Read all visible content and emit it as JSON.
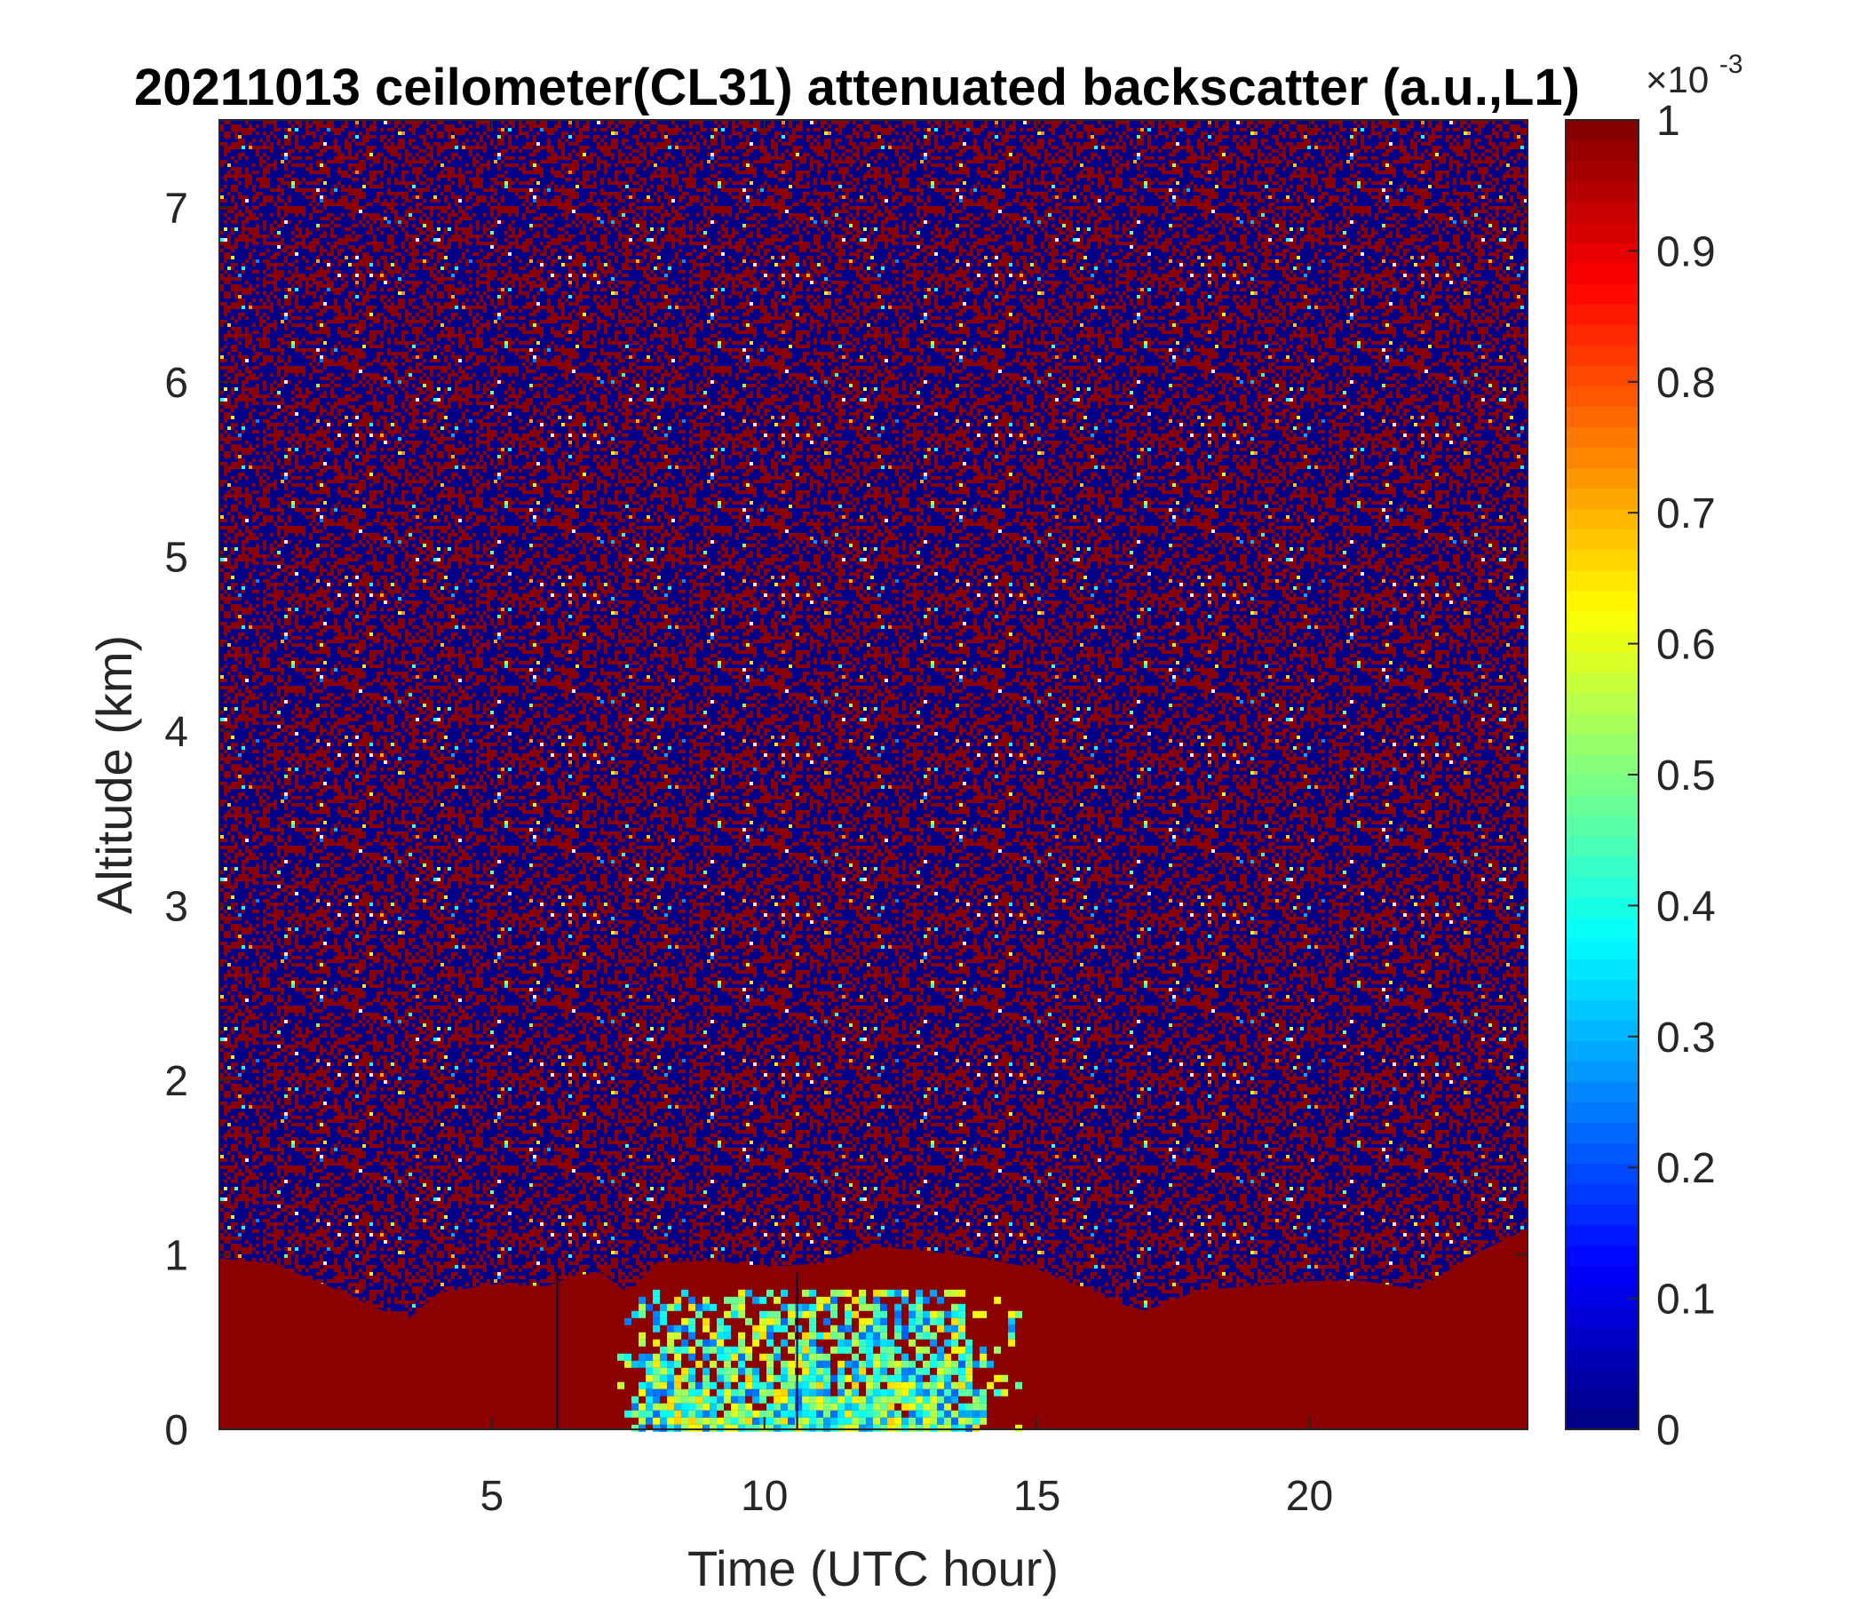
{
  "chart_data": {
    "type": "heatmap",
    "title": "20211013 ceilometer(CL31) attenuated backscatter (a.u.,L1)",
    "xlabel": "Time (UTC hour)",
    "ylabel": "Altitude (km)",
    "xlim": [
      0,
      24
    ],
    "ylim": [
      0,
      7.5
    ],
    "xticks": [
      5,
      10,
      15,
      20
    ],
    "yticks": [
      0,
      1,
      2,
      3,
      4,
      5,
      6,
      7
    ],
    "colorbar": {
      "colormap": "jet",
      "clim": [
        0,
        1
      ],
      "ticks": [
        0,
        0.1,
        0.2,
        0.3,
        0.4,
        0.5,
        0.6,
        0.7,
        0.8,
        0.9,
        1
      ],
      "tick_labels": [
        "0",
        "0.1",
        "0.2",
        "0.3",
        "0.4",
        "0.5",
        "0.6",
        "0.7",
        "0.8",
        "0.9",
        "1"
      ],
      "exponent_base": "×10",
      "exponent_power": "-3"
    },
    "boundary_layer_top_km": {
      "hours": [
        0,
        1,
        2,
        3,
        3.5,
        4,
        5,
        6,
        6.5,
        7,
        7.5,
        8,
        9,
        10,
        11,
        12,
        13,
        14,
        15,
        15.5,
        16,
        16.5,
        17,
        18,
        19,
        20,
        21,
        22,
        22.5,
        23,
        24
      ],
      "altitude": [
        0.98,
        0.95,
        0.82,
        0.68,
        0.64,
        0.78,
        0.83,
        0.82,
        0.88,
        0.9,
        0.78,
        0.95,
        0.97,
        0.93,
        0.95,
        1.05,
        1.02,
        0.98,
        0.92,
        0.85,
        0.8,
        0.72,
        0.68,
        0.8,
        0.82,
        0.85,
        0.85,
        0.8,
        0.9,
        1.0,
        1.15
      ]
    },
    "low_backscatter_region": {
      "hour_range": [
        7.3,
        14.6
      ],
      "altitude_range": [
        0,
        0.8
      ]
    },
    "dark_vertical_lines_hours": [
      6.2,
      10.6
    ]
  }
}
